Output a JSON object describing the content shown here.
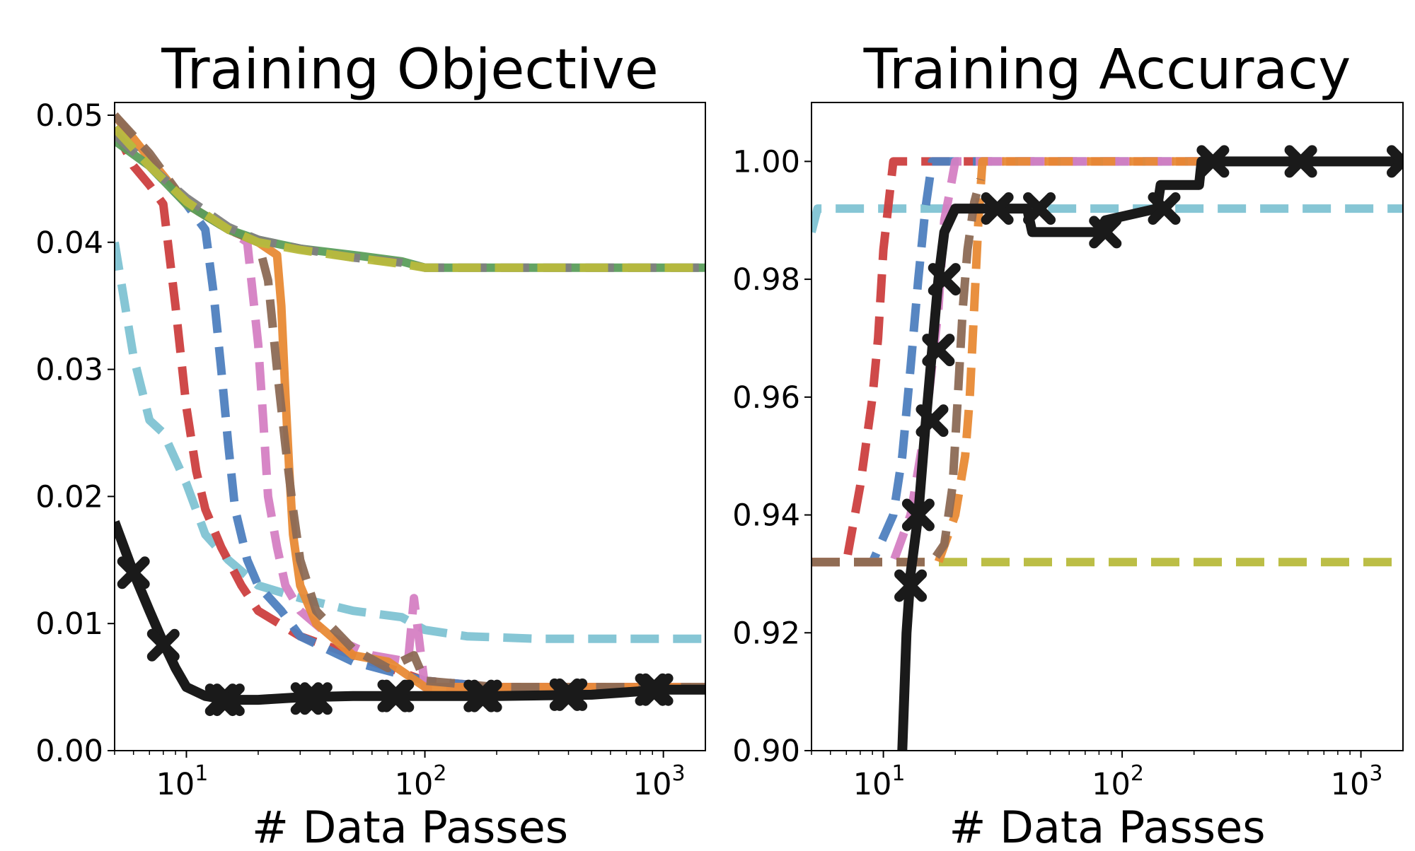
{
  "chart_data": [
    {
      "type": "line",
      "title": "Training Objective",
      "xlabel": "# Data Passes",
      "ylabel": "",
      "xscale": "log",
      "xlim": [
        5,
        1500
      ],
      "ylim": [
        0,
        0.051
      ],
      "yticks": [
        "0.00",
        "0.01",
        "0.02",
        "0.03",
        "0.04",
        "0.05"
      ],
      "xticks": [
        {
          "base": "10",
          "exp": "1"
        },
        {
          "base": "10",
          "exp": "2"
        },
        {
          "base": "10",
          "exp": "3"
        }
      ],
      "grid": false,
      "series": [
        {
          "color": "#7fc3d3",
          "dash": "dashed",
          "x": [
            5,
            6,
            7,
            8,
            10,
            12,
            15,
            20,
            30,
            50,
            80,
            100,
            150,
            300,
            1500
          ],
          "y": [
            0.04,
            0.031,
            0.026,
            0.025,
            0.021,
            0.017,
            0.015,
            0.013,
            0.012,
            0.011,
            0.0105,
            0.0095,
            0.009,
            0.0088,
            0.0088
          ]
        },
        {
          "color": "#cc3f3f",
          "dash": "dashed",
          "x": [
            5,
            6,
            7,
            8,
            9,
            10,
            11,
            12,
            14,
            17,
            20,
            30,
            50,
            100,
            200,
            1500
          ],
          "y": [
            0.049,
            0.046,
            0.0445,
            0.043,
            0.035,
            0.027,
            0.022,
            0.019,
            0.016,
            0.013,
            0.011,
            0.009,
            0.0075,
            0.0055,
            0.005,
            0.005
          ]
        },
        {
          "color": "#4e7fbf",
          "dash": "dashed",
          "x": [
            5,
            7,
            10,
            12,
            13,
            14,
            15,
            16,
            18,
            20,
            25,
            30,
            50,
            100,
            200,
            1500
          ],
          "y": [
            0.049,
            0.046,
            0.043,
            0.041,
            0.036,
            0.03,
            0.024,
            0.019,
            0.015,
            0.013,
            0.011,
            0.009,
            0.007,
            0.0055,
            0.005,
            0.005
          ]
        },
        {
          "color": "#d57fc3",
          "dash": "dashed",
          "x": [
            5,
            10,
            15,
            18,
            20,
            21,
            22,
            24,
            26,
            30,
            40,
            60,
            85,
            90,
            100,
            200,
            1500
          ],
          "y": [
            0.049,
            0.043,
            0.041,
            0.04,
            0.032,
            0.026,
            0.02,
            0.016,
            0.013,
            0.011,
            0.009,
            0.0075,
            0.007,
            0.012,
            0.005,
            0.005,
            0.005
          ]
        },
        {
          "color": "#e88a35",
          "dash": "solid",
          "x": [
            5,
            10,
            15,
            20,
            24,
            25,
            26,
            27,
            28,
            30,
            35,
            50,
            70,
            100,
            200,
            1500
          ],
          "y": [
            0.05,
            0.043,
            0.041,
            0.04,
            0.039,
            0.035,
            0.028,
            0.022,
            0.017,
            0.013,
            0.01,
            0.0075,
            0.007,
            0.005,
            0.005,
            0.005
          ]
        },
        {
          "color": "#8c6a55",
          "dash": "dashed",
          "x": [
            5,
            7,
            10,
            15,
            20,
            22,
            24,
            26,
            28,
            30,
            35,
            50,
            70,
            90,
            100,
            200,
            1500
          ],
          "y": [
            0.05,
            0.047,
            0.043,
            0.041,
            0.04,
            0.037,
            0.03,
            0.024,
            0.019,
            0.015,
            0.011,
            0.008,
            0.0065,
            0.0075,
            0.0055,
            0.005,
            0.005
          ]
        },
        {
          "color": "#5b9e5b",
          "dash": "solid",
          "x": [
            5,
            7,
            10,
            15,
            20,
            30,
            50,
            80,
            100,
            120,
            1500
          ],
          "y": [
            0.048,
            0.046,
            0.043,
            0.041,
            0.0402,
            0.0395,
            0.039,
            0.0385,
            0.038,
            0.038,
            0.038
          ]
        },
        {
          "color": "#7f7f7f",
          "dash": "dashed",
          "x": [
            5,
            7,
            10,
            15,
            20,
            30,
            50,
            80,
            100,
            120,
            1500
          ],
          "y": [
            0.0485,
            0.046,
            0.0435,
            0.0412,
            0.0402,
            0.0395,
            0.0388,
            0.0384,
            0.038,
            0.038,
            0.038
          ]
        },
        {
          "color": "#b8bb3c",
          "dash": "dashed",
          "x": [
            5,
            7,
            10,
            15,
            20,
            30,
            50,
            80,
            100,
            120,
            1500
          ],
          "y": [
            0.049,
            0.046,
            0.0432,
            0.041,
            0.04,
            0.0394,
            0.0388,
            0.0383,
            0.038,
            0.038,
            0.038
          ]
        },
        {
          "color": "#1a1a1a",
          "dash": "solid",
          "marker": "X",
          "x": [
            5,
            6,
            7,
            8,
            9,
            10,
            12,
            15,
            20,
            30,
            50,
            100,
            200,
            500,
            1000,
            1500
          ],
          "y": [
            0.018,
            0.014,
            0.011,
            0.0085,
            0.0065,
            0.005,
            0.0043,
            0.004,
            0.004,
            0.0042,
            0.0043,
            0.0043,
            0.0043,
            0.0044,
            0.0048,
            0.0048
          ],
          "mx": [
            6,
            8,
            14,
            15,
            32,
            35,
            74,
            77,
            170,
            180,
            390,
            410,
            890,
            940
          ],
          "my": [
            0.014,
            0.0083,
            0.004,
            0.004,
            0.0041,
            0.0041,
            0.0043,
            0.0043,
            0.0043,
            0.0043,
            0.0044,
            0.0044,
            0.0048,
            0.0048
          ]
        }
      ]
    },
    {
      "type": "line",
      "title": "Training Accuracy",
      "xlabel": "# Data Passes",
      "ylabel": "",
      "xscale": "log",
      "xlim": [
        5,
        1500
      ],
      "ylim": [
        0.9,
        1.01
      ],
      "yticks": [
        "0.90",
        "0.92",
        "0.94",
        "0.96",
        "0.98",
        "1.00"
      ],
      "xticks": [
        {
          "base": "10",
          "exp": "1"
        },
        {
          "base": "10",
          "exp": "2"
        },
        {
          "base": "10",
          "exp": "3"
        }
      ],
      "grid": false,
      "series": [
        {
          "color": "#7fc3d3",
          "dash": "dashed",
          "x": [
            5,
            5.3,
            6,
            1500
          ],
          "y": [
            0.988,
            0.992,
            0.992,
            0.992
          ]
        },
        {
          "color": "#b8bb3c",
          "dash": "dashed",
          "x": [
            5,
            1500
          ],
          "y": [
            0.932,
            0.932
          ]
        },
        {
          "color": "#cc3f3f",
          "dash": "dashed",
          "x": [
            5,
            7,
            8,
            9,
            9.5,
            10,
            11,
            1500
          ],
          "y": [
            0.932,
            0.932,
            0.945,
            0.96,
            0.97,
            0.985,
            1.0,
            1.0
          ]
        },
        {
          "color": "#4e7fbf",
          "dash": "dashed",
          "x": [
            5,
            9,
            11,
            12,
            13,
            14,
            15,
            16,
            1500
          ],
          "y": [
            0.932,
            0.932,
            0.94,
            0.95,
            0.965,
            0.98,
            0.992,
            1.0,
            1.0
          ]
        },
        {
          "color": "#d57fc3",
          "dash": "dashed",
          "x": [
            5,
            11,
            13,
            15,
            17,
            18,
            19,
            20,
            1500
          ],
          "y": [
            0.932,
            0.932,
            0.94,
            0.955,
            0.975,
            0.99,
            0.995,
            1.0,
            1.0
          ]
        },
        {
          "color": "#e88a35",
          "dash": "dashed",
          "x": [
            5,
            17,
            20,
            22,
            23,
            24,
            25,
            26,
            1500
          ],
          "y": [
            0.932,
            0.932,
            0.94,
            0.95,
            0.96,
            0.975,
            0.99,
            1.0,
            1.0
          ]
        },
        {
          "color": "#8c6a55",
          "dash": "dashed",
          "x": [
            5,
            16,
            18,
            19.5,
            20.5,
            21.5,
            22.5,
            24,
            25.5
          ],
          "y": [
            0.932,
            0.932,
            0.935,
            0.945,
            0.96,
            0.975,
            0.985,
            0.993,
            0.997
          ]
        },
        {
          "color": "#1a1a1a",
          "dash": "solid",
          "marker": "X",
          "x": [
            12,
            12.5,
            13,
            14,
            15,
            16,
            17,
            18,
            20,
            40,
            42,
            80,
            85,
            140,
            145,
            210,
            215,
            1500
          ],
          "y": [
            0.9,
            0.92,
            0.93,
            0.94,
            0.955,
            0.968,
            0.98,
            0.988,
            0.992,
            0.992,
            0.988,
            0.988,
            0.99,
            0.992,
            0.996,
            0.996,
            1.0,
            1.0
          ],
          "mx": [
            13,
            14,
            16,
            17,
            18,
            30,
            45,
            85,
            150,
            240,
            560,
            1500
          ],
          "my": [
            0.928,
            0.94,
            0.956,
            0.968,
            0.98,
            0.992,
            0.992,
            0.988,
            0.992,
            1.0,
            1.0,
            1.0
          ]
        }
      ]
    }
  ]
}
